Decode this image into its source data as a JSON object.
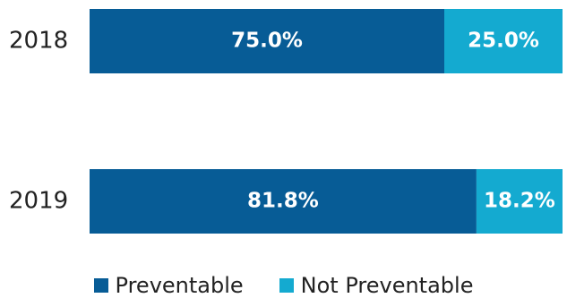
{
  "chart_data": {
    "type": "bar",
    "orientation": "horizontal",
    "stacked": true,
    "percent_stacked": true,
    "categories": [
      "2018",
      "2019"
    ],
    "series": [
      {
        "name": "Preventable",
        "values": [
          75.0,
          81.8
        ],
        "labels": [
          "75.0%",
          "81.8%"
        ],
        "color": "#075c96"
      },
      {
        "name": "Not Preventable",
        "values": [
          25.0,
          18.2
        ],
        "labels": [
          "25.0%",
          "18.2%"
        ],
        "color": "#14aad0"
      }
    ],
    "xlim": [
      0,
      100
    ],
    "grid": false,
    "legend_position": "bottom"
  }
}
